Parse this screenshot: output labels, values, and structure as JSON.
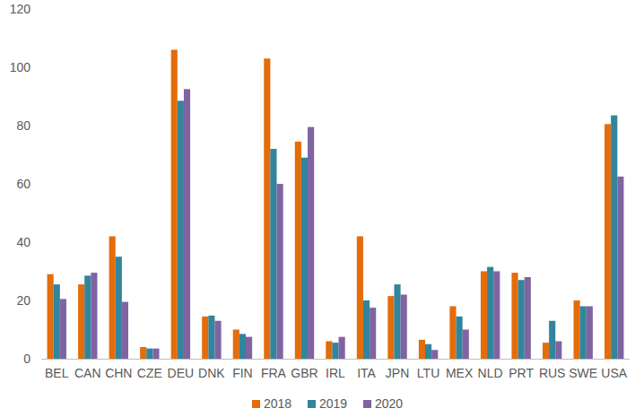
{
  "chart_data": {
    "type": "bar",
    "categories": [
      "BEL",
      "CAN",
      "CHN",
      "CZE",
      "DEU",
      "DNK",
      "FIN",
      "FRA",
      "GBR",
      "IRL",
      "ITA",
      "JPN",
      "LTU",
      "MEX",
      "NLD",
      "PRT",
      "RUS",
      "SWE",
      "USA"
    ],
    "series": [
      {
        "name": "2018",
        "color": "#e46c0a",
        "values": [
          29,
          25.5,
          42,
          4,
          106,
          14.5,
          10,
          103,
          74.5,
          6,
          42,
          21.5,
          6.5,
          18,
          30,
          29.5,
          5.5,
          20,
          80.5
        ]
      },
      {
        "name": "2019",
        "color": "#31859c",
        "values": [
          25.5,
          28.5,
          35,
          3.5,
          88.5,
          14.8,
          8.5,
          72,
          69,
          5.5,
          20,
          25.5,
          5,
          14.5,
          31.5,
          27,
          13,
          18,
          83.5
        ]
      },
      {
        "name": "2020",
        "color": "#8064a2",
        "values": [
          20.5,
          29.5,
          19.5,
          3.5,
          92.5,
          13,
          7.5,
          60,
          79.5,
          7.5,
          17.5,
          22,
          3,
          10,
          30,
          28,
          6,
          18,
          62.5
        ]
      }
    ],
    "ylim": [
      0,
      120
    ],
    "yticks": [
      0,
      20,
      40,
      60,
      80,
      100,
      120
    ],
    "grid": false,
    "legend": "bottom"
  }
}
